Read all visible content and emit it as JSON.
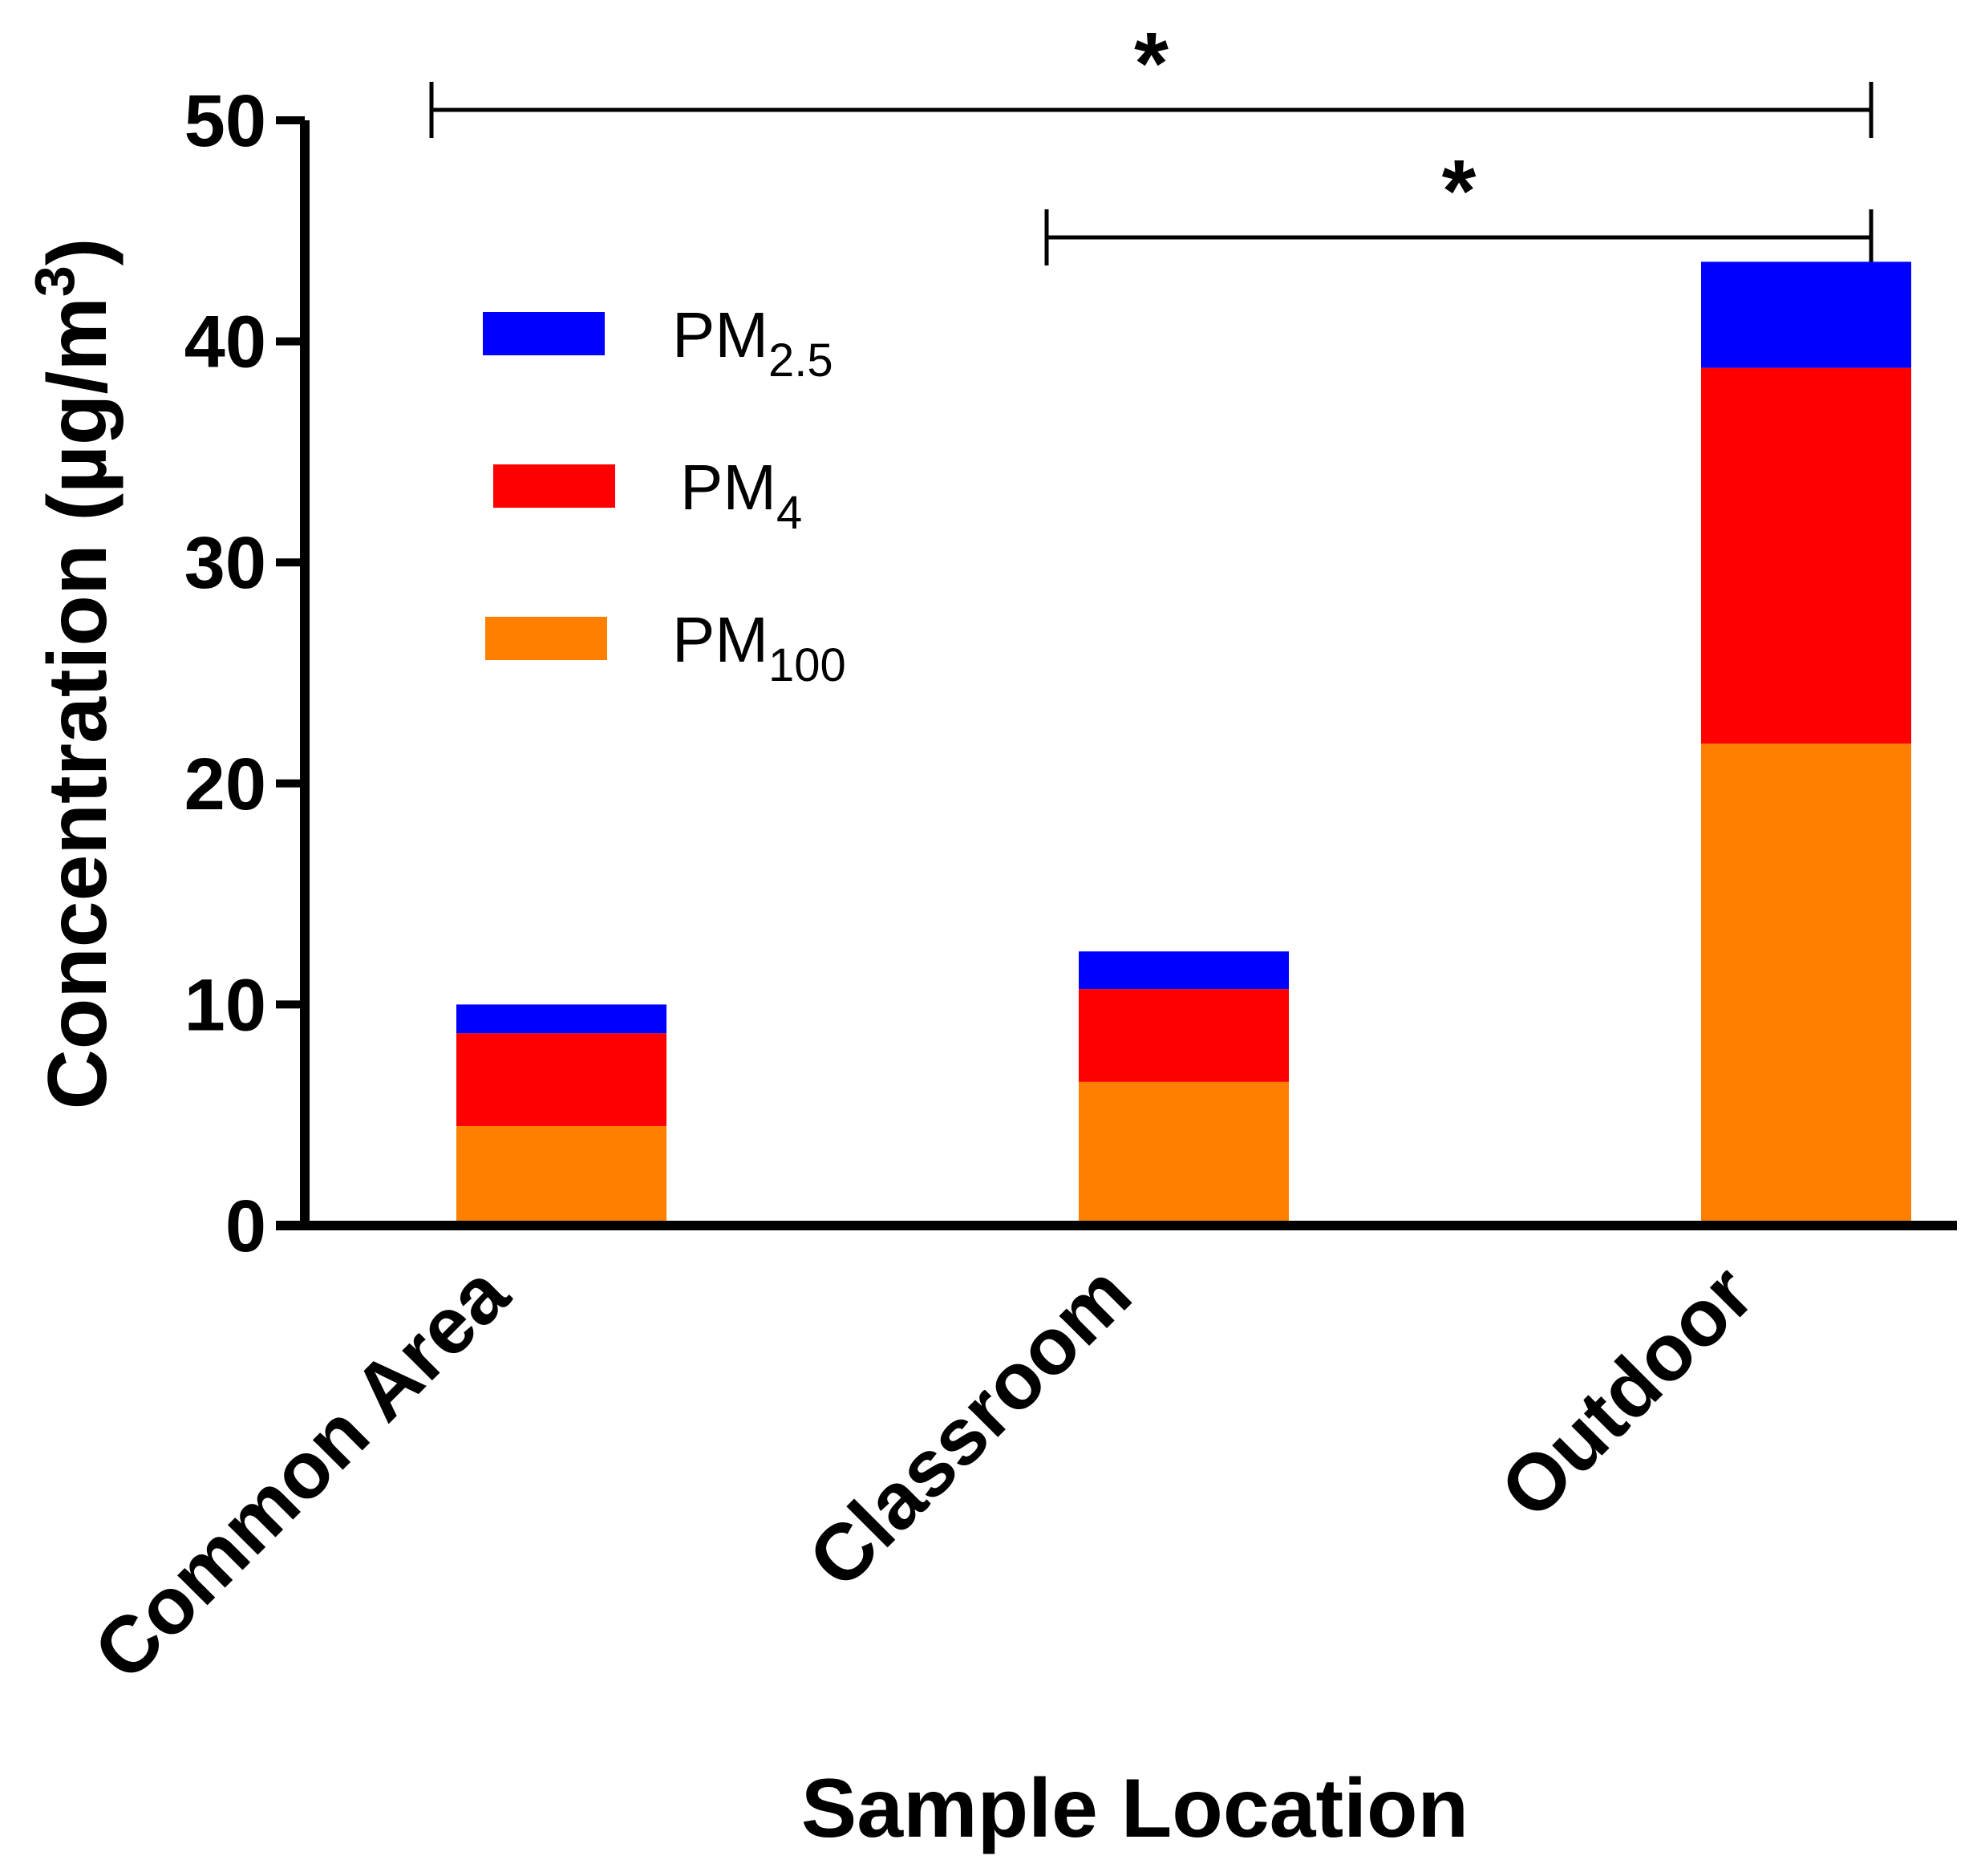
{
  "chart_data": {
    "type": "bar",
    "stacked": true,
    "title": "",
    "xlabel": "Sample Location",
    "ylabel": "Concentration (µg/m³)",
    "ylabel_parts": {
      "main": "Concentration (µg/m",
      "sup": "3",
      "close": ")"
    },
    "ylim": [
      0,
      50
    ],
    "yticks": [
      0,
      10,
      20,
      30,
      40,
      50
    ],
    "grid": false,
    "legend_position": "upper-left",
    "categories": [
      "Common Area",
      "Classroom",
      "Outdoor"
    ],
    "series": [
      {
        "name": "PM100",
        "label_base": "PM",
        "label_sub": "100",
        "color": "#FF8000",
        "values": [
          4.5,
          6.5,
          21.8
        ]
      },
      {
        "name": "PM4",
        "label_base": "PM",
        "label_sub": "4",
        "color": "#FF0000",
        "values": [
          4.2,
          4.2,
          17.0
        ]
      },
      {
        "name": "PM2.5",
        "label_base": "PM",
        "label_sub": "2.5",
        "color": "#0000FF",
        "values": [
          1.3,
          1.7,
          4.8
        ]
      }
    ],
    "legend_order": [
      "PM2.5",
      "PM4",
      "PM100"
    ],
    "significance": [
      {
        "from": "Common Area",
        "to": "Outdoor",
        "label": "*"
      },
      {
        "from": "Classroom",
        "to": "Outdoor",
        "label": "*"
      }
    ]
  }
}
